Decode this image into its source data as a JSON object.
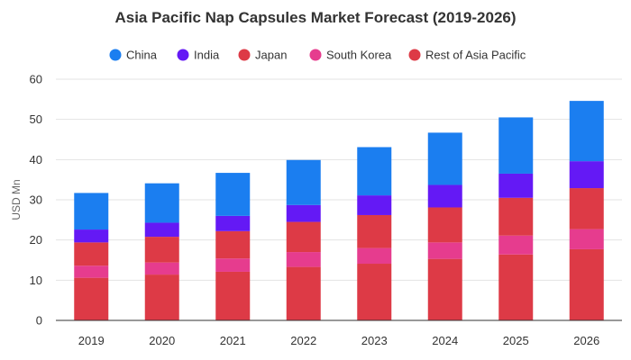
{
  "chart_data": {
    "type": "bar",
    "stacked": true,
    "title": "Asia Pacific Nap Capsules Market Forecast (2019-2026)",
    "ylabel": "USD Mn",
    "xlabel": "",
    "ylim": [
      0,
      60
    ],
    "yticks": [
      0,
      10,
      20,
      30,
      40,
      50,
      60
    ],
    "grid": true,
    "legend_position": "top",
    "categories": [
      "2019",
      "2020",
      "2021",
      "2022",
      "2023",
      "2024",
      "2025",
      "2026"
    ],
    "series": [
      {
        "name": "China",
        "color": "#1b7ef0",
        "values": [
          9.1,
          9.8,
          10.7,
          11.2,
          12.0,
          13.0,
          14.0,
          15.0
        ]
      },
      {
        "name": "India",
        "color": "#6419f5",
        "values": [
          3.2,
          3.5,
          3.8,
          4.2,
          4.9,
          5.6,
          6.0,
          6.7
        ]
      },
      {
        "name": "Japan",
        "color": "#dd3a46",
        "values": [
          5.8,
          6.4,
          6.8,
          7.5,
          8.2,
          8.7,
          9.4,
          10.2
        ]
      },
      {
        "name": "South Korea",
        "color": "#e63c8e",
        "values": [
          3.0,
          3.0,
          3.3,
          3.7,
          3.9,
          4.1,
          4.7,
          5.0
        ]
      },
      {
        "name": "Rest of Asia Pacific",
        "color": "#dd3a46",
        "values": [
          10.6,
          11.4,
          12.1,
          13.3,
          14.1,
          15.3,
          16.4,
          17.7
        ]
      }
    ]
  }
}
